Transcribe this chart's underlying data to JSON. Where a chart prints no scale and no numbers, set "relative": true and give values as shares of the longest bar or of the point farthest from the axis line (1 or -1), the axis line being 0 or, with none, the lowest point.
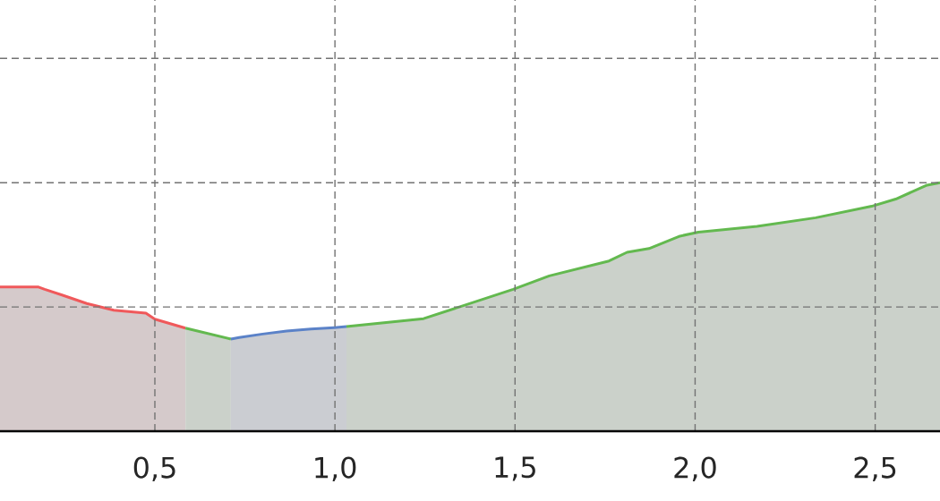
{
  "chart_data": {
    "type": "line",
    "relative": true,
    "grid": true,
    "tick_labels": "x",
    "xlim": [
      0.07,
      2.68
    ],
    "xticks": [
      {
        "value": 0.5,
        "label": "0,5"
      },
      {
        "value": 1.0,
        "label": "1,0"
      },
      {
        "value": 1.5,
        "label": "1,5"
      },
      {
        "value": 2.0,
        "label": "2,0"
      },
      {
        "value": 2.5,
        "label": "2,5"
      }
    ],
    "series": [
      {
        "color": "#f0595b",
        "x": [
          0.07,
          0.177,
          0.194,
          0.244,
          0.311,
          0.386,
          0.475,
          0.5,
          0.585
        ],
        "values": [
          0.58,
          0.58,
          0.571,
          0.547,
          0.514,
          0.487,
          0.475,
          0.451,
          0.415
        ],
        "lower": [
          0,
          0,
          0,
          0,
          0,
          0,
          0,
          0,
          0
        ],
        "upper": [
          0.58,
          0.58,
          0.571,
          0.547,
          0.514,
          0.487,
          0.475,
          0.451,
          0.415
        ]
      },
      {
        "color": "#63b94f",
        "x": [
          0.585,
          0.711
        ],
        "values": [
          0.415,
          0.371
        ],
        "lower": [
          0,
          0
        ],
        "upper": [
          0.415,
          0.371
        ]
      },
      {
        "color": "#5b82c8",
        "x": [
          0.711,
          0.734,
          0.799,
          0.866,
          0.933,
          0.998,
          1.032
        ],
        "values": [
          0.371,
          0.377,
          0.391,
          0.403,
          0.411,
          0.417,
          0.421
        ],
        "lower": [
          0,
          0,
          0,
          0,
          0,
          0,
          0
        ],
        "upper": [
          0.371,
          0.377,
          0.391,
          0.403,
          0.411,
          0.417,
          0.421
        ]
      },
      {
        "color": "#63b94f",
        "x": [
          1.032,
          1.246,
          1.495,
          1.595,
          1.761,
          1.811,
          1.872,
          1.958,
          2.009,
          2.172,
          2.335,
          2.49,
          2.557,
          2.644,
          2.68
        ],
        "values": [
          0.421,
          0.453,
          0.571,
          0.625,
          0.685,
          0.72,
          0.735,
          0.785,
          0.801,
          0.824,
          0.859,
          0.905,
          0.934,
          0.99,
          1.0
        ],
        "lower": [
          0,
          0,
          0,
          0,
          0,
          0,
          0,
          0,
          0,
          0,
          0,
          0,
          0,
          0,
          0
        ],
        "upper": [
          0.421,
          0.453,
          0.571,
          0.625,
          0.685,
          0.72,
          0.735,
          0.785,
          0.801,
          0.824,
          0.859,
          0.905,
          0.934,
          0.99,
          1.0
        ]
      }
    ]
  }
}
